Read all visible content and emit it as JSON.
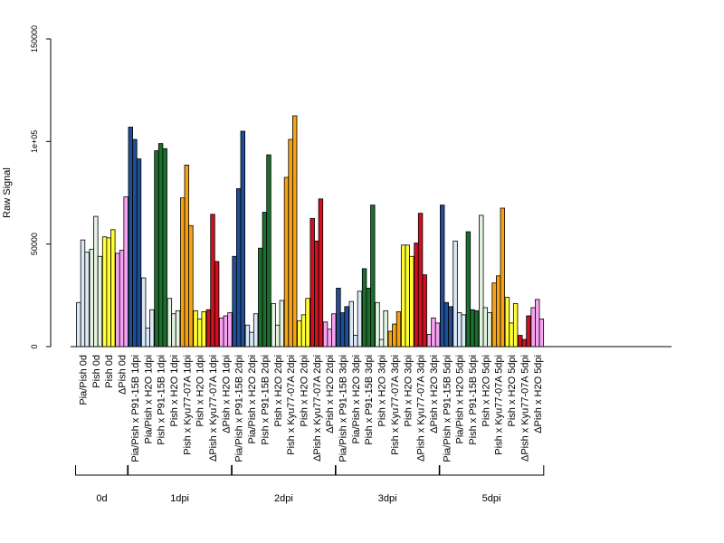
{
  "chart_data": {
    "type": "bar",
    "title": "",
    "xlabel": "",
    "ylabel": "Raw Signal",
    "ylim": [
      0,
      150000
    ],
    "yticks": [
      {
        "value": 0,
        "label": "0"
      },
      {
        "value": 50000,
        "label": "50000"
      },
      {
        "value": 100000,
        "label": "1e+05"
      },
      {
        "value": 150000,
        "label": "150000"
      }
    ],
    "bars_per_sample": 3,
    "categories": [
      "Pia/Pish 0d",
      "Pish 0d",
      "Pish 0d",
      "ΔPish 0d",
      "Pia/Pish x P91-15B 1dpi",
      "Pia/Pish x H2O 1dpi",
      "Pish x P91-15B 1dpi",
      "Pish x H2O 1dpi",
      "Pish x Kyu77-07A 1dpi",
      "Pish x H2O 1dpi",
      "ΔPish x Kyu77-07A 1dpi",
      "ΔPish x H2O 1dpi",
      "Pia/Pish x P91-15B 2dpi",
      "Pia/Pish x H2O 2dpi",
      "Pish x P91-15B 2dpi",
      "Pish x H2O 2dpi",
      "Pish x Kyu77-07A 2dpi",
      "Pish x H2O 2dpi",
      "ΔPish x Kyu77-07A 2dpi",
      "ΔPish x H2O 2dpi",
      "Pia/Pish x P91-15B 3dpi",
      "Pia/Pish x H2O 3dpi",
      "Pish x P91-15B 3dpi",
      "Pish x H2O 3dpi",
      "Pish x Kyu77-07A 3dpi",
      "Pish x H2O 3dpi",
      "ΔPish x Kyu77-07A 3dpi",
      "ΔPish x H2O 3dpi",
      "Pia/Pish x P91-15B 5dpi",
      "Pia/Pish x H2O 5dpi",
      "Pish x P91-15B 5dpi",
      "Pish x H2O 5dpi",
      "Pish x Kyu77-07A 5dpi",
      "Pish x H2O 5dpi",
      "ΔPish x Kyu77-07A 5dpi",
      "ΔPish x H2O 5dpi"
    ],
    "values": [
      [
        21500,
        52000,
        46000
      ],
      [
        47500,
        63500,
        44000
      ],
      [
        53500,
        53000,
        57000
      ],
      [
        45500,
        47000,
        73000
      ],
      [
        107000,
        101000,
        91500
      ],
      [
        33500,
        9000,
        18000
      ],
      [
        95500,
        99000,
        96500
      ],
      [
        23500,
        16000,
        17500
      ],
      [
        72500,
        88500,
        59000
      ],
      [
        17500,
        13500,
        17000
      ],
      [
        18000,
        64500,
        41500
      ],
      [
        14000,
        15000,
        16500
      ],
      [
        44000,
        77000,
        105000
      ],
      [
        10500,
        7000,
        16000
      ],
      [
        48000,
        65500,
        93500
      ],
      [
        21000,
        10500,
        22500
      ],
      [
        82500,
        101000,
        112500
      ],
      [
        12500,
        15500,
        23500
      ],
      [
        62500,
        51500,
        72000
      ],
      [
        12000,
        8500,
        16000
      ],
      [
        28500,
        16500,
        19500
      ],
      [
        22000,
        5500,
        27000
      ],
      [
        38000,
        28500,
        69000
      ],
      [
        21500,
        3500,
        17500
      ],
      [
        7500,
        11000,
        17000
      ],
      [
        49500,
        49500,
        44000
      ],
      [
        50500,
        65000,
        35000
      ],
      [
        6000,
        14000,
        11500
      ],
      [
        69000,
        21500,
        19500
      ],
      [
        51500,
        16500,
        15500
      ],
      [
        56000,
        18000,
        17500
      ],
      [
        64000,
        19000,
        16500
      ],
      [
        31000,
        34500,
        67500
      ],
      [
        24000,
        11500,
        21000
      ],
      [
        5500,
        3500,
        15000
      ],
      [
        19000,
        23000,
        13500
      ]
    ],
    "colors": [
      "#dbe8f7",
      "#e3f3e0",
      "#ffff33",
      "#f6a3f2",
      "#1f4e96",
      "#dbe8f7",
      "#1c6e2c",
      "#e3f3e0",
      "#f5a316",
      "#ffff33",
      "#d0101e",
      "#f6a3f2",
      "#1f4e96",
      "#dbe8f7",
      "#1c6e2c",
      "#e3f3e0",
      "#f5a316",
      "#ffff33",
      "#d0101e",
      "#f6a3f2",
      "#1f4e96",
      "#dbe8f7",
      "#1c6e2c",
      "#e3f3e0",
      "#f5a316",
      "#ffff33",
      "#d0101e",
      "#f6a3f2",
      "#1f4e96",
      "#dbe8f7",
      "#1c6e2c",
      "#e3f3e0",
      "#f5a316",
      "#ffff33",
      "#d0101e",
      "#f6a3f2"
    ],
    "groups": [
      {
        "label": "0d",
        "first": 0,
        "last": 3
      },
      {
        "label": "1dpi",
        "first": 4,
        "last": 11
      },
      {
        "label": "2dpi",
        "first": 12,
        "last": 19
      },
      {
        "label": "3dpi",
        "first": 20,
        "last": 27
      },
      {
        "label": "5dpi",
        "first": 28,
        "last": 35
      }
    ],
    "grid": false,
    "legend": "none"
  }
}
